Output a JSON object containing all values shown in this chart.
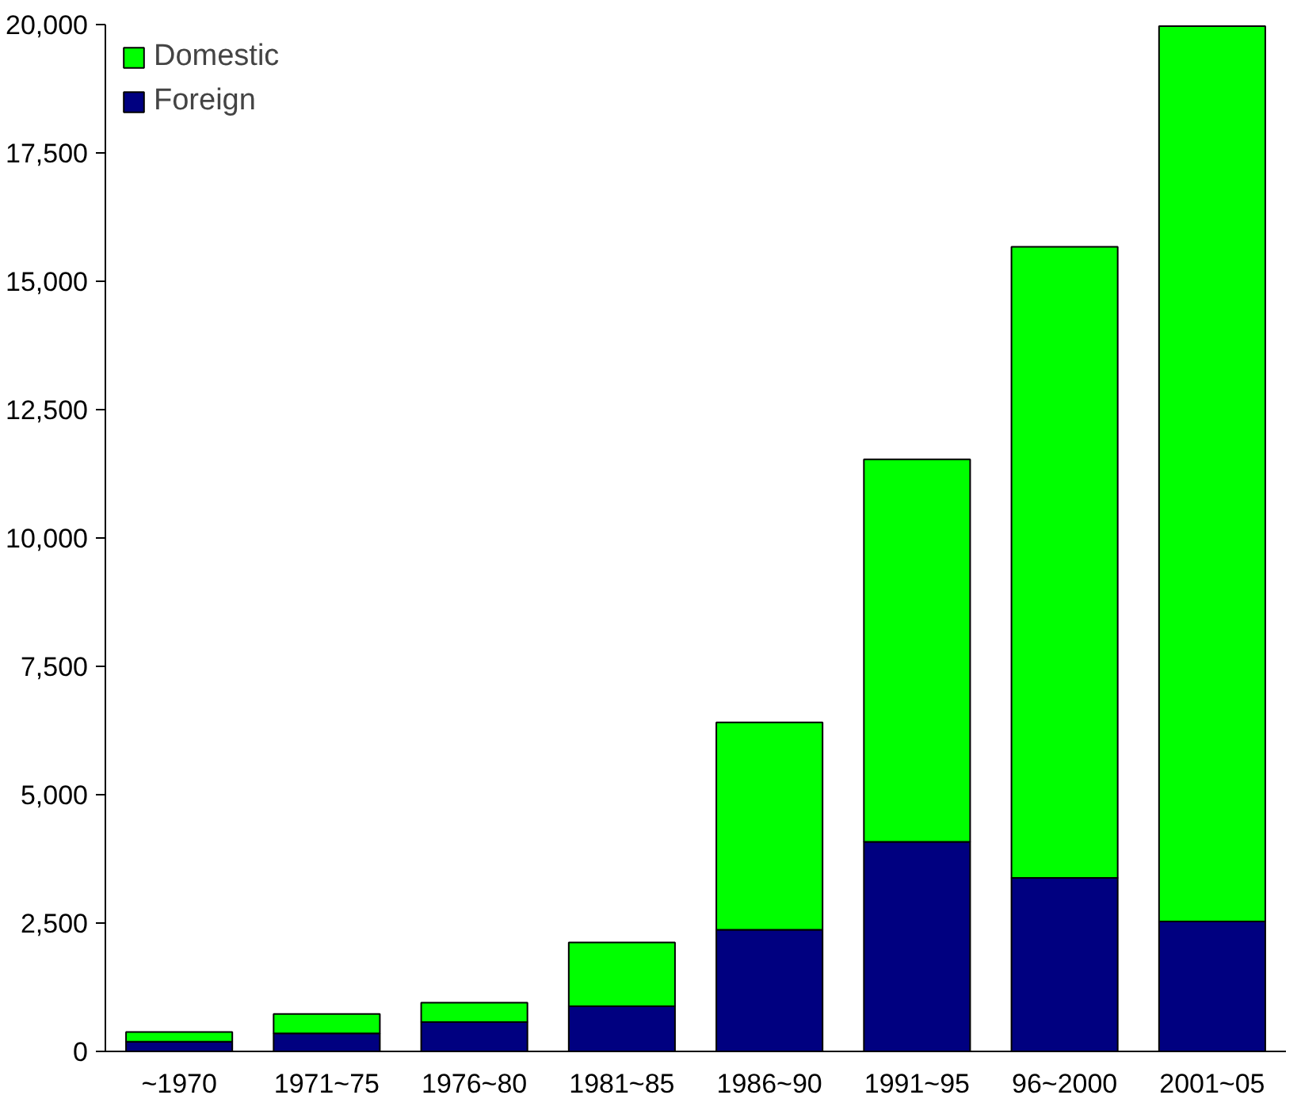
{
  "chart_data": {
    "type": "bar",
    "stacked": true,
    "categories": [
      "~1970",
      "1971~75",
      "1976~80",
      "1981~85",
      "1986~90",
      "1991~95",
      "96~2000",
      "2001~05"
    ],
    "series": [
      {
        "name": "Foreign",
        "color": "#000080",
        "values": [
          190,
          350,
          570,
          880,
          2370,
          4080,
          3380,
          2530
        ]
      },
      {
        "name": "Domestic",
        "color": "#00ff00",
        "values": [
          190,
          380,
          380,
          1240,
          4040,
          7450,
          12290,
          17440
        ]
      }
    ],
    "ylim": [
      0,
      20000
    ],
    "yticks": [
      {
        "value": 0,
        "label": "0"
      },
      {
        "value": 2500,
        "label": "2,500"
      },
      {
        "value": 5000,
        "label": "5,000"
      },
      {
        "value": 7500,
        "label": "7,500"
      },
      {
        "value": 10000,
        "label": "10,000"
      },
      {
        "value": 12500,
        "label": "12,500"
      },
      {
        "value": 15000,
        "label": "15,000"
      },
      {
        "value": 17500,
        "label": "17,500"
      },
      {
        "value": 20000,
        "label": "20,000"
      }
    ],
    "grid": false,
    "legend": "top left"
  }
}
